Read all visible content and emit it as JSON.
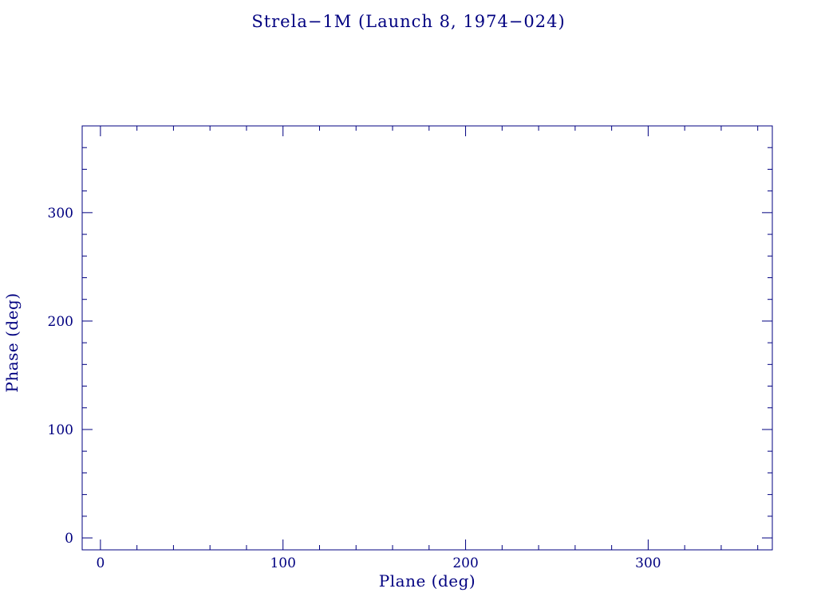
{
  "chart_data": {
    "type": "scatter",
    "title": "Strela−1M (Launch 8, 1974−024)",
    "xlabel": "Plane (deg)",
    "ylabel": "Phase (deg)",
    "xlim": [
      -10,
      368
    ],
    "ylim": [
      -11,
      380
    ],
    "x_major_ticks": [
      0,
      100,
      200,
      300
    ],
    "y_major_ticks": [
      0,
      100,
      200,
      300
    ],
    "minor_tick_interval": 20,
    "points": [],
    "grid": false,
    "legend": "none",
    "axis_color": "#000080",
    "background_color": "#ffffff"
  }
}
